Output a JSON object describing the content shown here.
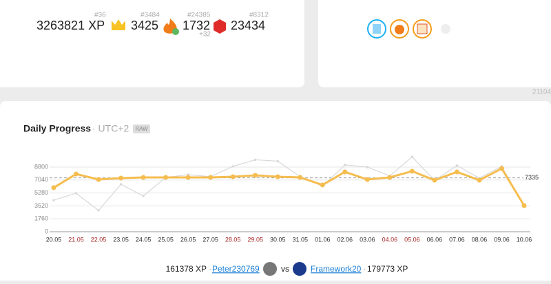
{
  "stats": {
    "xp": "3263821 XP",
    "xp_rank": "#36",
    "crowns": "3425",
    "crowns_rank": "#3484",
    "streak": "1732",
    "streak_rank": "#24385",
    "streak_delta": "+32",
    "gems": "23434",
    "gems_rank": "#8312"
  },
  "side_number": "21104",
  "chart_data": {
    "type": "line",
    "title": "Daily Progress",
    "subtitle": "· UTC+2",
    "badge": "RAW",
    "categories": [
      "20.05",
      "21.05",
      "22.05",
      "23.05",
      "24.05",
      "25.05",
      "26.05",
      "27.05",
      "28.05",
      "29.05",
      "30.05",
      "31.05",
      "01.06",
      "02.06",
      "03.06",
      "04.06",
      "05.06",
      "06.06",
      "07.06",
      "08.06",
      "09.06",
      "10.06"
    ],
    "weekend_indices": [
      1,
      2,
      8,
      9,
      15,
      16
    ],
    "weekend_color": "#a52a2a",
    "series": [
      {
        "name": "Framework20",
        "color": "#d8d8d8",
        "values": [
          4300,
          5240,
          2900,
          6460,
          4870,
          7400,
          7770,
          7500,
          8900,
          9800,
          9600,
          7500,
          6200,
          9100,
          8800,
          7600,
          10200,
          7000,
          9000,
          7300,
          8900,
          3500
        ]
      },
      {
        "name": "Peter230769",
        "color": "#f5bd4f",
        "values": [
          6000,
          7860,
          7115,
          7300,
          7400,
          7400,
          7400,
          7400,
          7490,
          7680,
          7490,
          7400,
          6370,
          8145,
          7115,
          7400,
          8240,
          7020,
          8145,
          7020,
          8610,
          3560
        ]
      }
    ],
    "ylim": [
      0,
      9700
    ],
    "yticks": [
      0,
      1760,
      3520,
      5280,
      7040,
      8800
    ],
    "grid": true,
    "reference": {
      "value": 7335,
      "label": "7335"
    }
  },
  "versus": {
    "left_xp": "161378 XP",
    "left_user": "Peter230769",
    "vs": "vs",
    "right_user": "Framework20",
    "right_xp": "179773 XP"
  }
}
